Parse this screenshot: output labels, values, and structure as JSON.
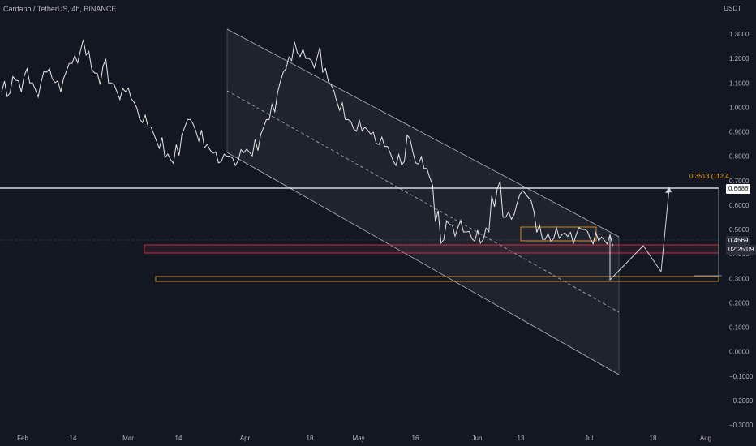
{
  "header": {
    "symbol_line": "Cardano / TetherUS, 4h, BINANCE",
    "currency": "USDT"
  },
  "price_axis": {
    "ticks": [
      "1.3000",
      "1.2000",
      "1.1000",
      "1.0000",
      "0.9000",
      "0.8000",
      "0.7000",
      "0.6000",
      "0.5000",
      "0.4000",
      "0.3000",
      "0.2000",
      "0.1000",
      "0.0000",
      "−0.1000",
      "−0.2000",
      "−0.3000"
    ],
    "tick_values": [
      1.3,
      1.2,
      1.1,
      1.0,
      0.9,
      0.8,
      0.7,
      0.6,
      0.5,
      0.4,
      0.3,
      0.2,
      0.1,
      0.0,
      -0.1,
      -0.2,
      -0.3
    ]
  },
  "time_axis": {
    "ticks": [
      "Feb",
      "14",
      "Mar",
      "14",
      "Apr",
      "18",
      "May",
      "16",
      "Jun",
      "13",
      "Jul",
      "18",
      "Aug"
    ]
  },
  "tags": {
    "resistance_price": "0.6686",
    "last_price": "0.4569",
    "countdown": "02:25:09",
    "measure_label": "0.3513 (112.4"
  },
  "chart_data": {
    "type": "line",
    "title": "Cardano / TetherUS, 4h, BINANCE",
    "ylabel": "USDT",
    "ylim": [
      -0.3,
      1.3
    ],
    "x_ticks": [
      "Feb",
      "14",
      "Mar",
      "14",
      "Apr",
      "18",
      "May",
      "16",
      "Jun",
      "13",
      "Jul",
      "18",
      "Aug"
    ],
    "series": [
      {
        "values": [
          1.08,
          1.05,
          1.12,
          1.09,
          1.14,
          1.1,
          1.06,
          1.12,
          1.15,
          1.11,
          1.09,
          1.13,
          1.18,
          1.2,
          1.25,
          1.22,
          1.15,
          1.12,
          1.18,
          1.1,
          1.08,
          1.05,
          1.07,
          1.03,
          0.98,
          0.95,
          0.92,
          0.88,
          0.85,
          0.8,
          0.78,
          0.83,
          0.9,
          0.95,
          0.92,
          0.88,
          0.84,
          0.82,
          0.8,
          0.79,
          0.8,
          0.78,
          0.8,
          0.82,
          0.81,
          0.85,
          0.9,
          0.95,
          1.0,
          1.08,
          1.15,
          1.2,
          1.25,
          1.22,
          1.2,
          1.18,
          1.22,
          1.15,
          1.1,
          1.05,
          1.0,
          0.95,
          0.93,
          0.92,
          0.91,
          0.9,
          0.88,
          0.86,
          0.84,
          0.8,
          0.78,
          0.77,
          0.88,
          0.8,
          0.78,
          0.75,
          0.7,
          0.55,
          0.45,
          0.53,
          0.5,
          0.52,
          0.49,
          0.48,
          0.47,
          0.45,
          0.5,
          0.62,
          0.68,
          0.55,
          0.56,
          0.58,
          0.65,
          0.64,
          0.6,
          0.5,
          0.46,
          0.47,
          0.48,
          0.47,
          0.48,
          0.47,
          0.49,
          0.5,
          0.48,
          0.46,
          0.46,
          0.45,
          0.46
        ]
      }
    ],
    "levels": {
      "resistance": 0.6686,
      "last_price": 0.4569,
      "support_zone": [
        0.41,
        0.44
      ],
      "lower_zone": [
        0.29,
        0.3
      ],
      "measure_low": 0.3173,
      "measure_change": 0.3513
    },
    "projection_path": [
      0.44,
      0.3,
      0.43,
      0.34,
      0.67
    ],
    "grid": false
  }
}
